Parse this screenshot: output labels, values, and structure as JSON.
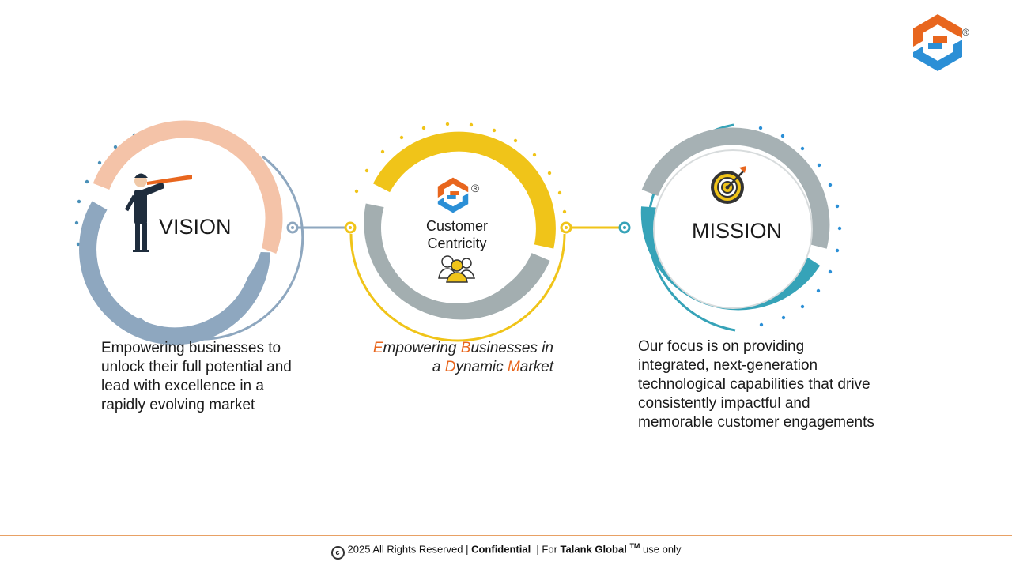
{
  "logo": {
    "registered": "®"
  },
  "vision": {
    "title": "VISION",
    "description": "Empowering businesses to unlock their full potential and lead with excellence in a rapidly evolving market"
  },
  "center": {
    "title_line1": "Customer",
    "title_line2": "Centricity",
    "registered": "®",
    "tagline": {
      "line1": [
        {
          "accent": "E",
          "rest": "mpowering "
        },
        {
          "accent": "B",
          "rest": "usinesses in"
        }
      ],
      "line2": [
        {
          "plain": "a "
        },
        {
          "accent": "D",
          "rest": "ynamic "
        },
        {
          "accent": "M",
          "rest": "arket"
        }
      ]
    }
  },
  "mission": {
    "title": "MISSION",
    "description": "Our focus is on providing integrated, next-generation technological capabilities that drive consistently impactful and memorable customer engagements"
  },
  "footer": {
    "copyright_symbol": "c",
    "text_year": "2025 All Rights Reserved | ",
    "confidential": "Confidential",
    "text_for": "  | For ",
    "company": "Talank Global",
    "tm": "TM",
    "text_end": " use only"
  },
  "colors": {
    "orange": "#e8661e",
    "blue": "#2b8fd6",
    "vision_peach": "#f4c3a8",
    "vision_steel": "#8ea7bf",
    "center_yellow": "#f0c419",
    "center_grey": "#a3aeb0",
    "mission_teal": "#36a3b8",
    "mission_grey": "#a6b1b4"
  },
  "icons": [
    "talank-logo-icon",
    "telescope-man-icon",
    "customer-group-icon",
    "target-dart-icon",
    "copyright-icon"
  ]
}
